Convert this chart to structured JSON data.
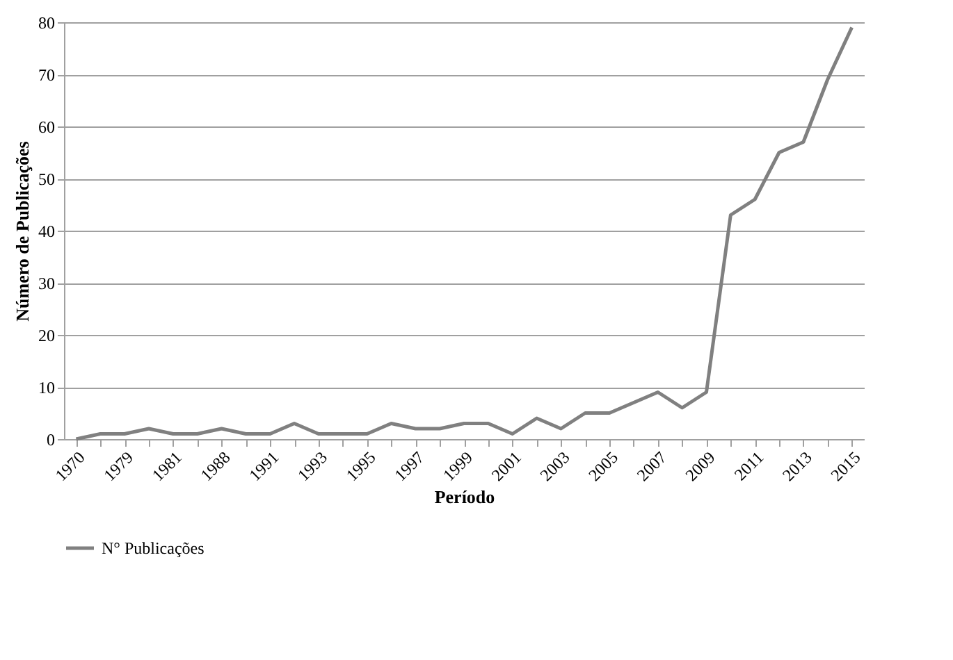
{
  "chart_data": {
    "type": "line",
    "xlabel": "Período",
    "ylabel": "Número de Publicações",
    "categories": [
      "1970",
      null,
      "1979",
      null,
      "1981",
      null,
      "1988",
      null,
      "1991",
      null,
      "1993",
      null,
      "1995",
      null,
      "1997",
      null,
      "1999",
      null,
      "2001",
      null,
      "2003",
      null,
      "2005",
      null,
      "2007",
      null,
      "2009",
      null,
      "2011",
      null,
      "2013",
      null,
      "2015"
    ],
    "series": [
      {
        "name": "N° Publicações",
        "color": "#808080",
        "values": [
          0,
          1,
          1,
          2,
          1,
          1,
          2,
          1,
          1,
          3,
          1,
          1,
          1,
          3,
          2,
          2,
          3,
          3,
          1,
          4,
          2,
          5,
          5,
          7,
          9,
          6,
          9,
          43,
          46,
          55,
          57,
          69,
          79
        ]
      }
    ],
    "ylim": [
      0,
      80
    ],
    "yticks": [
      0,
      10,
      20,
      30,
      40,
      50,
      60,
      70,
      80
    ],
    "grid": "y",
    "legend": "bottom",
    "marker": "none",
    "line_style": "solid"
  }
}
